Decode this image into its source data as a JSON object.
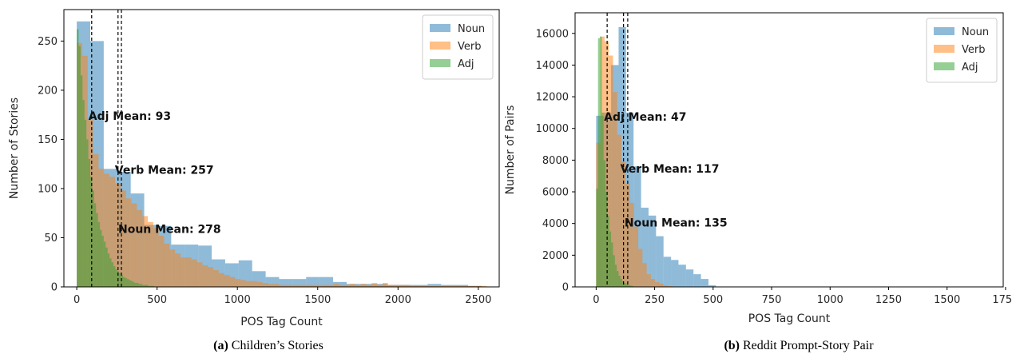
{
  "colors": {
    "noun": "#1f77b4",
    "verb": "#ff7f0e",
    "adj": "#2ca02c"
  },
  "chart_data": [
    {
      "type": "histogram",
      "caption_label": "(a)",
      "caption_text": "Children’s Stories",
      "xlabel": "POS Tag Count",
      "ylabel": "Number of Stories",
      "xlim": [
        -80,
        2630
      ],
      "ylim": [
        0,
        282
      ],
      "xticks": [
        0,
        500,
        1000,
        1500,
        2000,
        2500
      ],
      "xtick_labels": [
        "0",
        "500",
        "1000",
        "1500",
        "2000",
        "2500"
      ],
      "yticks": [
        0,
        50,
        100,
        150,
        200,
        250
      ],
      "ytick_labels": [
        "0",
        "50",
        "100",
        "150",
        "200",
        "250"
      ],
      "legend": [
        "Noun",
        "Verb",
        "Adj"
      ],
      "legend_position": "top-right",
      "grid": false,
      "series": [
        {
          "name": "Noun",
          "bin_width": 84,
          "bin_start": 0,
          "counts": [
            270,
            250,
            120,
            117,
            95,
            63,
            62,
            43,
            43,
            42,
            28,
            24,
            27,
            16,
            10,
            8,
            8,
            10,
            10,
            5,
            3,
            3,
            3,
            2,
            2,
            2,
            3,
            2,
            2,
            1
          ]
        },
        {
          "name": "Verb",
          "bin_width": 34,
          "bin_start": 0,
          "counts": [
            248,
            235,
            170,
            135,
            120,
            115,
            112,
            105,
            98,
            90,
            85,
            78,
            72,
            66,
            60,
            52,
            44,
            38,
            34,
            30,
            30,
            28,
            25,
            22,
            20,
            17,
            14,
            12,
            10,
            8,
            7,
            6,
            6,
            5,
            4,
            3,
            3,
            2,
            2,
            2,
            2,
            2,
            2,
            2,
            2,
            2,
            2,
            3,
            2,
            2,
            3,
            2,
            3,
            2,
            4,
            2,
            4,
            2,
            2,
            2,
            2,
            1,
            1,
            1,
            1,
            1,
            1,
            1,
            1,
            1,
            1,
            1,
            1,
            1,
            1
          ]
        },
        {
          "name": "Adj",
          "bin_width": 12,
          "bin_start": 0,
          "counts": [
            262,
            245,
            215,
            190,
            170,
            150,
            130,
            112,
            98,
            85,
            75,
            66,
            58,
            52,
            46,
            40,
            34,
            29,
            25,
            21,
            18,
            16,
            14,
            12,
            10,
            9,
            8,
            7,
            6,
            5,
            4,
            4,
            3,
            3,
            2,
            2,
            2,
            1,
            1,
            1
          ]
        }
      ],
      "means": [
        {
          "name": "Adj",
          "value": 93,
          "label": "Adj Mean: 93",
          "label_y": 170
        },
        {
          "name": "Verb",
          "value": 257,
          "label": "Verb Mean: 257",
          "label_y": 115
        },
        {
          "name": "Noun",
          "value": 278,
          "label": "Noun Mean: 278",
          "label_y": 55
        }
      ]
    },
    {
      "type": "histogram",
      "caption_label": "(b)",
      "caption_text": "Reddit Prompt-Story Pair",
      "xlabel": "POS Tag Count",
      "ylabel": "Number of Pairs",
      "xlim": [
        -90,
        1740
      ],
      "ylim": [
        0,
        17300
      ],
      "xticks": [
        0,
        250,
        500,
        750,
        1000,
        1250,
        1500,
        1750
      ],
      "xtick_labels": [
        "0",
        "250",
        "500",
        "750",
        "1000",
        "1250",
        "1500",
        "1750"
      ],
      "yticks": [
        0,
        2000,
        4000,
        6000,
        8000,
        10000,
        12000,
        14000,
        16000
      ],
      "ytick_labels": [
        "0",
        "2000",
        "4000",
        "6000",
        "8000",
        "10000",
        "12000",
        "14000",
        "16000"
      ],
      "legend": [
        "Noun",
        "Verb",
        "Adj"
      ],
      "legend_position": "top-right",
      "grid": false,
      "series": [
        {
          "name": "Noun",
          "bin_width": 32,
          "bin_start": 0,
          "counts": [
            10800,
            11000,
            14000,
            16400,
            11000,
            7600,
            5000,
            4500,
            3200,
            1900,
            1700,
            1400,
            1100,
            800,
            500,
            100
          ]
        },
        {
          "name": "Verb",
          "bin_width": 18,
          "bin_start": 0,
          "counts": [
            9100,
            15800,
            15500,
            14600,
            12300,
            9600,
            7900,
            6500,
            5300,
            3800,
            2400,
            1500,
            800,
            500,
            300,
            200,
            100,
            50,
            30,
            20
          ]
        },
        {
          "name": "Adj",
          "bin_width": 8,
          "bin_start": 0,
          "counts": [
            6200,
            15700,
            15800,
            11000,
            8000,
            6000,
            4500,
            3500,
            2800,
            2000,
            1400,
            1000,
            700,
            500,
            350,
            250,
            180,
            120,
            80,
            60
          ]
        }
      ],
      "means": [
        {
          "name": "Adj",
          "value": 47,
          "label": "Adj Mean: 47",
          "label_y": 10500
        },
        {
          "name": "Verb",
          "value": 117,
          "label": "Verb Mean: 117",
          "label_y": 7200
        },
        {
          "name": "Noun",
          "value": 135,
          "label": "Noun Mean: 135",
          "label_y": 3800
        }
      ]
    }
  ]
}
